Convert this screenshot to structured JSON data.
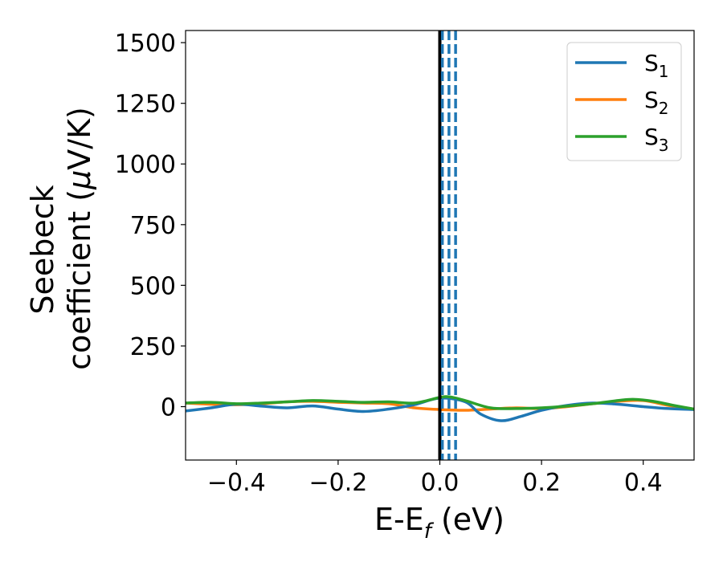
{
  "chart_data": {
    "type": "line",
    "title": "",
    "xlabel": {
      "main": "E-E",
      "sub": "f",
      "tail": " (eV)"
    },
    "ylabel": {
      "line1": "Seebeck",
      "line2": "coefficient  (",
      "mu": "μ",
      "tail": "V/K)"
    },
    "xlim": [
      -0.5,
      0.5
    ],
    "ylim": [
      -220,
      1550
    ],
    "xticks": [
      -0.4,
      -0.2,
      0.0,
      0.2,
      0.4
    ],
    "xtick_labels": [
      "−0.4",
      "−0.2",
      "0.0",
      "0.2",
      "0.4"
    ],
    "yticks": [
      0,
      250,
      500,
      750,
      1000,
      1250,
      1500
    ],
    "ytick_labels": [
      "0",
      "250",
      "500",
      "750",
      "1000",
      "1250",
      "1500"
    ],
    "grid": false,
    "legend_position": "top-right",
    "vertical_lines": [
      {
        "x": 0.0,
        "style": "solid",
        "color": "#000000"
      },
      {
        "x": 0.005,
        "style": "dashed",
        "color": "#1f77b4"
      },
      {
        "x": 0.018,
        "style": "dashed",
        "color": "#1f77b4"
      },
      {
        "x": 0.031,
        "style": "dashed",
        "color": "#1f77b4"
      }
    ],
    "series": [
      {
        "name": "S",
        "sub": "1",
        "color": "#1f77b4",
        "x": [
          -0.5,
          -0.45,
          -0.4,
          -0.35,
          -0.3,
          -0.25,
          -0.2,
          -0.15,
          -0.1,
          -0.05,
          0.0,
          0.05,
          0.08,
          0.12,
          0.16,
          0.2,
          0.25,
          0.3,
          0.35,
          0.4,
          0.45,
          0.5
        ],
        "y": [
          -18,
          -5,
          10,
          2,
          -5,
          3,
          -10,
          -20,
          -10,
          8,
          35,
          20,
          -30,
          -58,
          -40,
          -15,
          5,
          15,
          10,
          0,
          -8,
          -12
        ]
      },
      {
        "name": "S",
        "sub": "2",
        "color": "#ff7f0e",
        "x": [
          -0.5,
          -0.45,
          -0.4,
          -0.35,
          -0.3,
          -0.25,
          -0.2,
          -0.15,
          -0.1,
          -0.05,
          0.0,
          0.05,
          0.1,
          0.15,
          0.2,
          0.25,
          0.3,
          0.35,
          0.4,
          0.45,
          0.5
        ],
        "y": [
          15,
          10,
          8,
          12,
          20,
          22,
          18,
          15,
          12,
          -5,
          -12,
          -15,
          -10,
          -5,
          -8,
          0,
          12,
          22,
          25,
          5,
          -10
        ]
      },
      {
        "name": "S",
        "sub": "3",
        "color": "#2ca02c",
        "x": [
          -0.5,
          -0.45,
          -0.4,
          -0.35,
          -0.3,
          -0.25,
          -0.2,
          -0.15,
          -0.1,
          -0.05,
          0.0,
          0.02,
          0.05,
          0.1,
          0.15,
          0.2,
          0.25,
          0.3,
          0.35,
          0.38,
          0.42,
          0.46,
          0.5
        ],
        "y": [
          15,
          18,
          12,
          15,
          20,
          25,
          22,
          18,
          20,
          15,
          38,
          40,
          25,
          -5,
          -8,
          -5,
          2,
          12,
          25,
          30,
          22,
          5,
          -10
        ]
      }
    ]
  }
}
